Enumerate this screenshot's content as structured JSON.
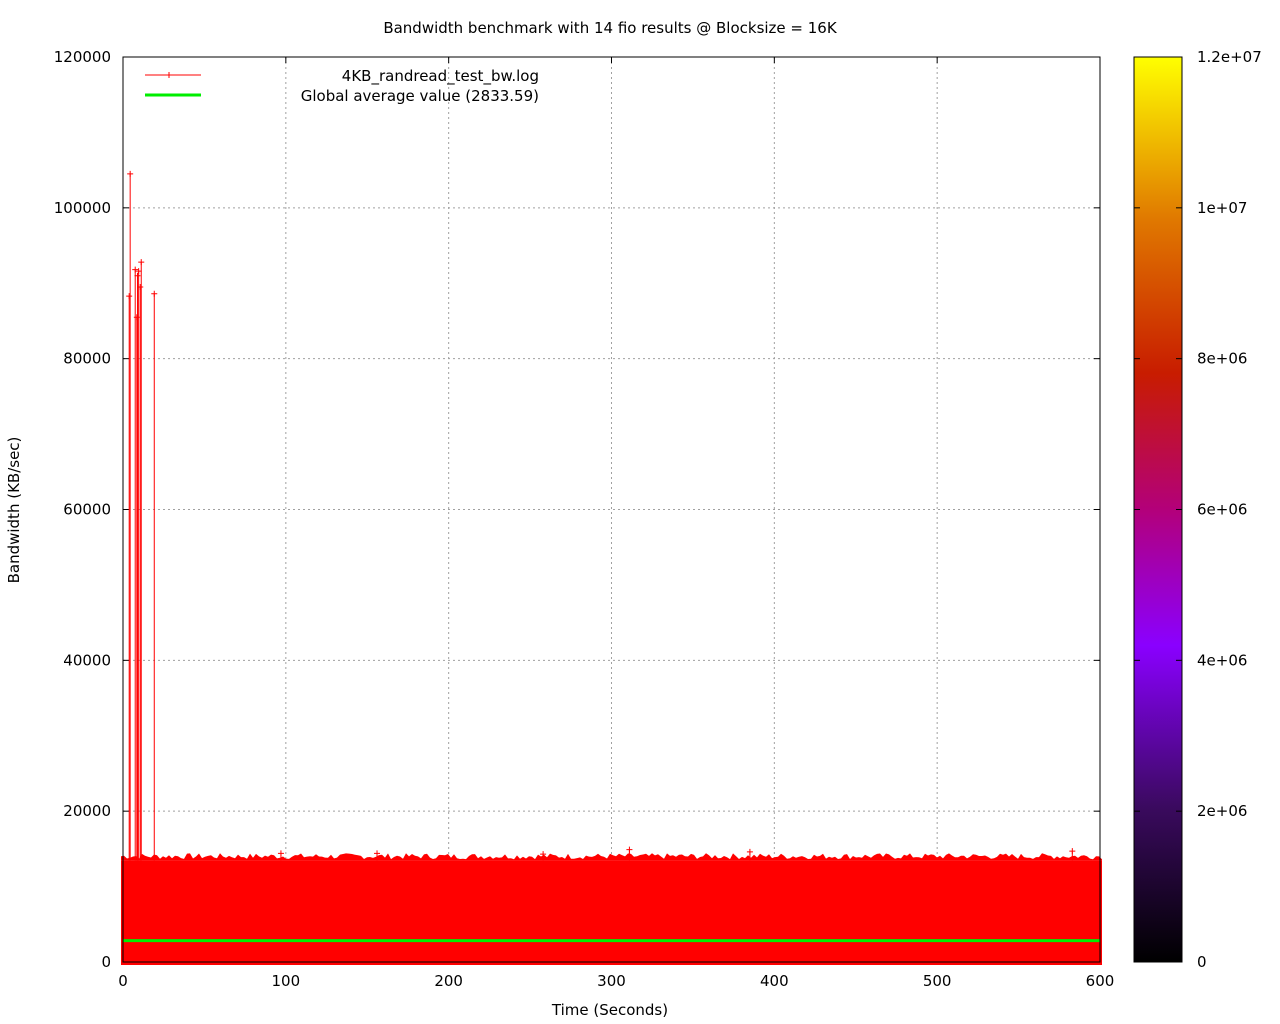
{
  "chart_data": {
    "type": "line",
    "title": "Bandwidth benchmark with 14 fio results @ Blocksize = 16K",
    "xlabel": "Time (Seconds)",
    "ylabel": "Bandwidth (KB/sec)",
    "xlim": [
      0,
      600
    ],
    "ylim": [
      0,
      120000
    ],
    "x_ticks": [
      "0",
      "100",
      "200",
      "300",
      "400",
      "500",
      "600"
    ],
    "y_ticks": [
      "0",
      "20000",
      "40000",
      "60000",
      "80000",
      "100000",
      "120000"
    ],
    "grid": true,
    "legend_position": "top-left",
    "colorbar": {
      "range": [
        0,
        12000000
      ],
      "ticks": [
        "0",
        "2e+06",
        "4e+06",
        "6e+06",
        "8e+06",
        "1e+07",
        "1.2e+07"
      ]
    },
    "series": [
      {
        "name": "4KB_randread_test_bw.log",
        "color": "#ff0000",
        "marker": "+",
        "band": {
          "x": [
            0,
            600
          ],
          "low": 0,
          "high": 13500
        },
        "peaks": [
          {
            "x": 3.8,
            "y": 88300
          },
          {
            "x": 4.4,
            "y": 104500
          },
          {
            "x": 7.5,
            "y": 91800
          },
          {
            "x": 8.5,
            "y": 85500
          },
          {
            "x": 8.9,
            "y": 91000
          },
          {
            "x": 9.6,
            "y": 91600
          },
          {
            "x": 10.6,
            "y": 89500
          },
          {
            "x": 11.2,
            "y": 92800
          },
          {
            "x": 19.2,
            "y": 88600
          }
        ],
        "band_top_outliers": [
          {
            "x": 97,
            "y": 14400
          },
          {
            "x": 156,
            "y": 14400
          },
          {
            "x": 258,
            "y": 14300
          },
          {
            "x": 311,
            "y": 14900
          },
          {
            "x": 385,
            "y": 14600
          },
          {
            "x": 583,
            "y": 14700
          }
        ]
      },
      {
        "name": "Global average value (2833.59)",
        "color": "#00ee00",
        "value": 2833.59
      }
    ]
  }
}
